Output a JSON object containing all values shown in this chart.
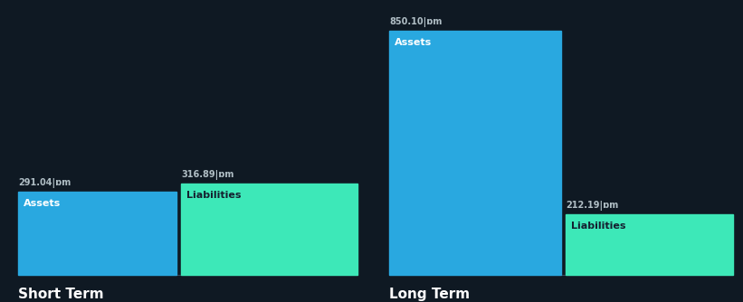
{
  "background_color": "#0f1923",
  "short_term": {
    "label": "Short Term",
    "assets_value": 291.04,
    "liabilities_value": 316.89,
    "assets_label": "Assets",
    "liabilities_label": "Liabilities",
    "assets_color": "#29a8e0",
    "liabilities_color": "#3de8b8"
  },
  "long_term": {
    "label": "Long Term",
    "assets_value": 850.1,
    "liabilities_value": 212.19,
    "assets_label": "Assets",
    "liabilities_label": "Liabilities",
    "assets_color": "#29a8e0",
    "liabilities_color": "#3de8b8"
  },
  "value_suffix": "|ɒm",
  "label_font_color_assets": "#ffffff",
  "label_font_color_liabilities": "#152030",
  "value_font_color": "#b0bec5",
  "section_label_color": "#ffffff",
  "label_fontsize": 8,
  "value_fontsize": 7,
  "section_fontsize": 11
}
